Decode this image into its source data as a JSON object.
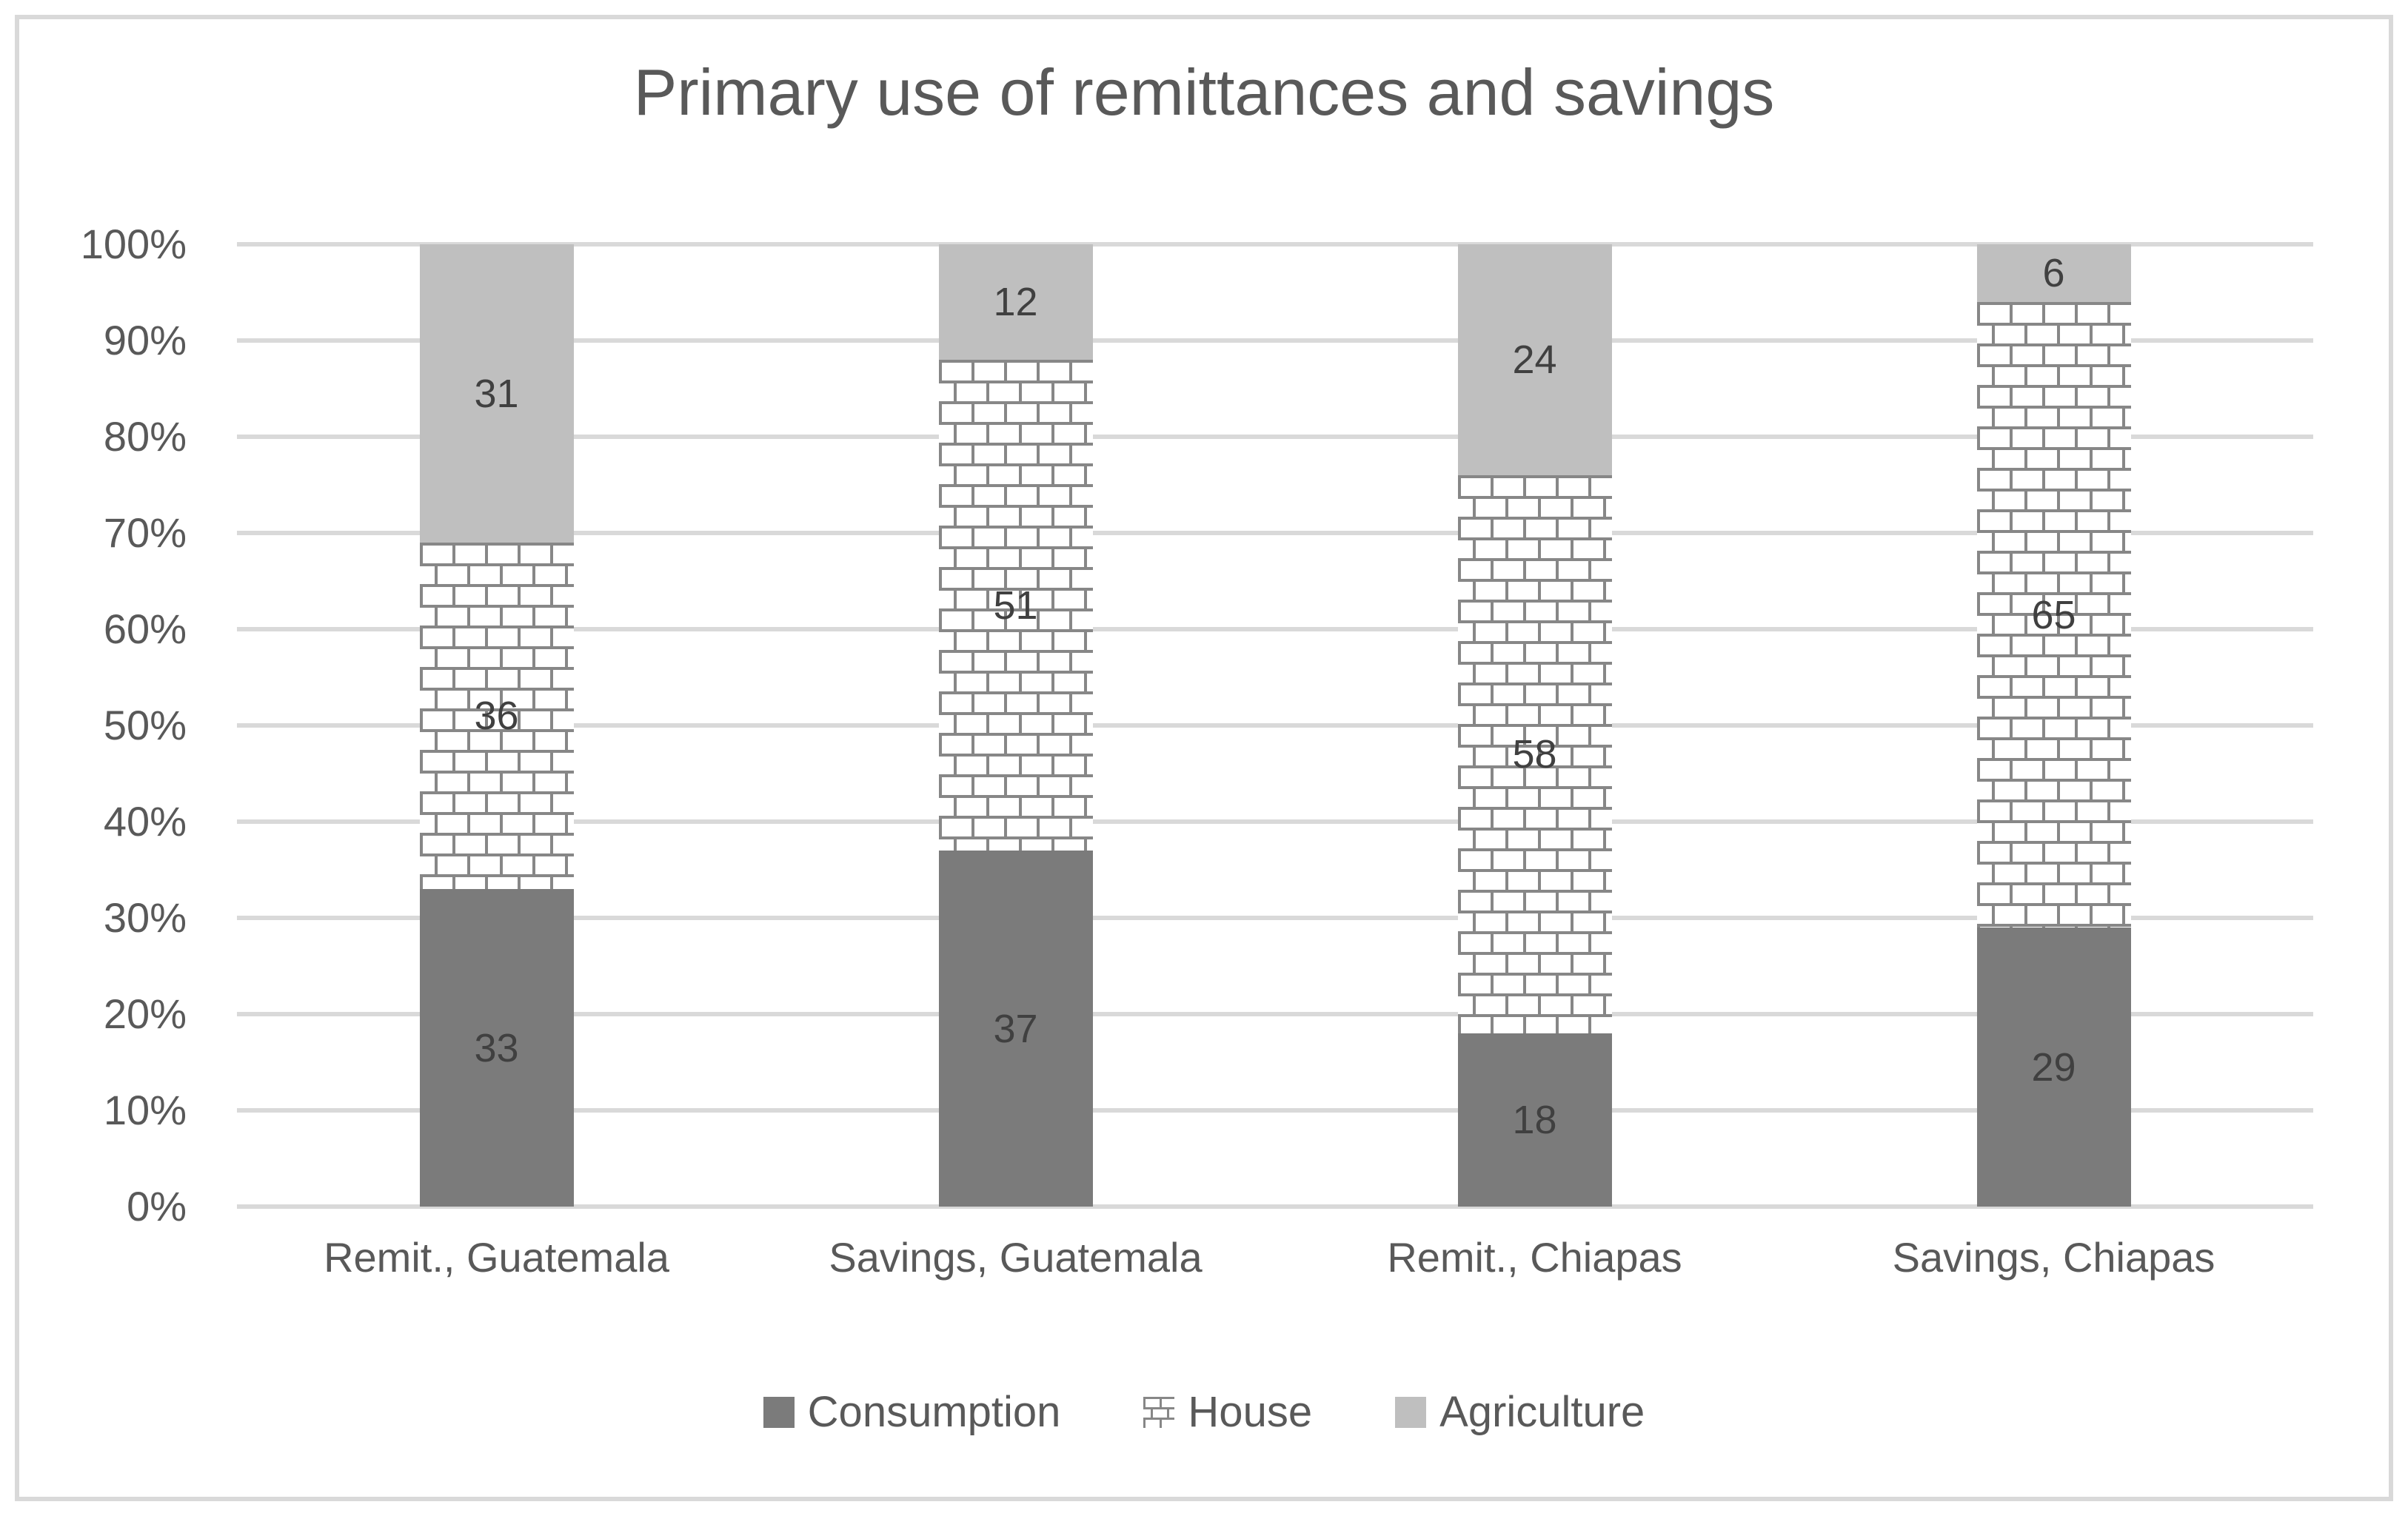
{
  "chart_data": {
    "type": "bar",
    "stacked": true,
    "title": "Primary use of remittances and savings",
    "categories": [
      "Remit., Guatemala",
      "Savings, Guatemala",
      "Remit., Chiapas",
      "Savings, Chiapas"
    ],
    "series": [
      {
        "name": "Consumption",
        "values": [
          33,
          37,
          18,
          29
        ],
        "fill": "solid",
        "color": "#7b7b7b"
      },
      {
        "name": "House",
        "values": [
          36,
          51,
          58,
          65
        ],
        "fill": "brick-pattern",
        "color": "#ffffff",
        "pattern_line_color": "#878787"
      },
      {
        "name": "Agriculture",
        "values": [
          31,
          12,
          24,
          6
        ],
        "fill": "solid",
        "color": "#bfbfbf"
      }
    ],
    "xlabel": "",
    "ylabel": "",
    "ylim": [
      0,
      100
    ],
    "y_tick_step": 10,
    "y_tick_labels": [
      "0%",
      "10%",
      "20%",
      "30%",
      "40%",
      "50%",
      "60%",
      "70%",
      "80%",
      "90%",
      "100%"
    ],
    "grid": "horizontal",
    "legend_position": "bottom",
    "data_labels": true
  },
  "colors": {
    "background": "#ffffff",
    "frame_border": "#d9d9d9",
    "gridline": "#d9d9d9",
    "title_text": "#595959",
    "axis_text": "#595959",
    "data_label_text": "#404040"
  }
}
